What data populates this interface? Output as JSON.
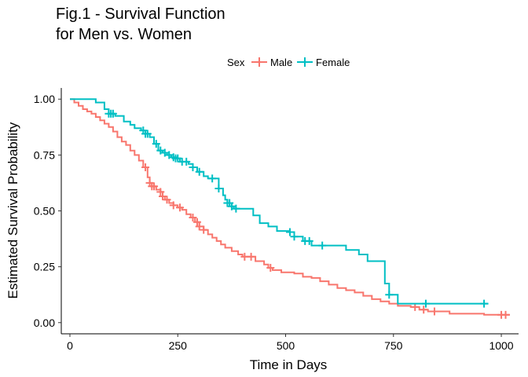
{
  "chart_data": {
    "type": "line",
    "step": true,
    "title_lines": [
      "Fig.1 - Survival Function",
      "for Men vs. Women"
    ],
    "xlabel": "Time in Days",
    "ylabel": "Estimated Survival Probability",
    "xlim": [
      -20,
      1040
    ],
    "ylim": [
      -0.05,
      1.05
    ],
    "x_ticks": [
      0,
      250,
      500,
      750,
      1000
    ],
    "x_tick_labels": [
      "0",
      "250",
      "500",
      "750",
      "1000"
    ],
    "y_ticks": [
      0,
      0.25,
      0.5,
      0.75,
      1.0
    ],
    "y_tick_labels": [
      "0.00",
      "0.25",
      "0.50",
      "0.75",
      "1.00"
    ],
    "grid": false,
    "legend": {
      "title": "Sex",
      "position": "top"
    },
    "series": [
      {
        "name": "Male",
        "color": "#F8766D",
        "points": [
          [
            0,
            1.0
          ],
          [
            10,
            0.985
          ],
          [
            20,
            0.97
          ],
          [
            30,
            0.955
          ],
          [
            40,
            0.945
          ],
          [
            50,
            0.935
          ],
          [
            60,
            0.92
          ],
          [
            70,
            0.905
          ],
          [
            80,
            0.89
          ],
          [
            90,
            0.875
          ],
          [
            100,
            0.855
          ],
          [
            110,
            0.83
          ],
          [
            120,
            0.81
          ],
          [
            130,
            0.795
          ],
          [
            140,
            0.77
          ],
          [
            150,
            0.75
          ],
          [
            160,
            0.725
          ],
          [
            170,
            0.695
          ],
          [
            180,
            0.65
          ],
          [
            185,
            0.625
          ],
          [
            190,
            0.61
          ],
          [
            200,
            0.595
          ],
          [
            210,
            0.585
          ],
          [
            215,
            0.565
          ],
          [
            220,
            0.55
          ],
          [
            230,
            0.535
          ],
          [
            240,
            0.525
          ],
          [
            250,
            0.515
          ],
          [
            260,
            0.505
          ],
          [
            270,
            0.485
          ],
          [
            280,
            0.47
          ],
          [
            290,
            0.45
          ],
          [
            300,
            0.43
          ],
          [
            310,
            0.415
          ],
          [
            320,
            0.395
          ],
          [
            330,
            0.38
          ],
          [
            340,
            0.365
          ],
          [
            350,
            0.35
          ],
          [
            360,
            0.335
          ],
          [
            375,
            0.32
          ],
          [
            390,
            0.305
          ],
          [
            400,
            0.295
          ],
          [
            420,
            0.295
          ],
          [
            430,
            0.275
          ],
          [
            450,
            0.26
          ],
          [
            460,
            0.245
          ],
          [
            470,
            0.235
          ],
          [
            490,
            0.225
          ],
          [
            520,
            0.22
          ],
          [
            540,
            0.205
          ],
          [
            560,
            0.2
          ],
          [
            580,
            0.185
          ],
          [
            600,
            0.17
          ],
          [
            620,
            0.155
          ],
          [
            640,
            0.145
          ],
          [
            660,
            0.135
          ],
          [
            680,
            0.12
          ],
          [
            700,
            0.105
          ],
          [
            720,
            0.095
          ],
          [
            740,
            0.085
          ],
          [
            760,
            0.075
          ],
          [
            790,
            0.07
          ],
          [
            810,
            0.058
          ],
          [
            830,
            0.05
          ],
          [
            880,
            0.04
          ],
          [
            960,
            0.035
          ],
          [
            1020,
            0.035
          ]
        ],
        "censor_x": [
          175,
          185,
          190,
          195,
          210,
          215,
          225,
          240,
          255,
          285,
          295,
          300,
          310,
          405,
          420,
          465,
          800,
          820,
          845,
          1000,
          1010
        ]
      },
      {
        "name": "Female",
        "color": "#00BFC4",
        "points": [
          [
            0,
            1.0
          ],
          [
            60,
            0.985
          ],
          [
            80,
            0.955
          ],
          [
            90,
            0.935
          ],
          [
            105,
            0.925
          ],
          [
            125,
            0.9
          ],
          [
            140,
            0.885
          ],
          [
            150,
            0.87
          ],
          [
            165,
            0.86
          ],
          [
            175,
            0.845
          ],
          [
            185,
            0.83
          ],
          [
            195,
            0.8
          ],
          [
            205,
            0.77
          ],
          [
            215,
            0.76
          ],
          [
            225,
            0.75
          ],
          [
            235,
            0.74
          ],
          [
            245,
            0.735
          ],
          [
            255,
            0.72
          ],
          [
            275,
            0.71
          ],
          [
            285,
            0.695
          ],
          [
            295,
            0.675
          ],
          [
            310,
            0.655
          ],
          [
            320,
            0.645
          ],
          [
            345,
            0.6
          ],
          [
            355,
            0.57
          ],
          [
            360,
            0.55
          ],
          [
            365,
            0.535
          ],
          [
            375,
            0.52
          ],
          [
            380,
            0.51
          ],
          [
            425,
            0.48
          ],
          [
            440,
            0.445
          ],
          [
            460,
            0.43
          ],
          [
            480,
            0.41
          ],
          [
            510,
            0.405
          ],
          [
            520,
            0.385
          ],
          [
            540,
            0.365
          ],
          [
            560,
            0.345
          ],
          [
            640,
            0.325
          ],
          [
            670,
            0.305
          ],
          [
            690,
            0.275
          ],
          [
            730,
            0.175
          ],
          [
            740,
            0.125
          ],
          [
            760,
            0.085
          ],
          [
            970,
            0.085
          ]
        ],
        "censor_x": [
          90,
          95,
          100,
          170,
          175,
          180,
          200,
          210,
          220,
          230,
          240,
          245,
          250,
          260,
          270,
          285,
          300,
          330,
          345,
          365,
          370,
          375,
          385,
          510,
          520,
          545,
          555,
          585,
          740,
          825,
          960
        ]
      }
    ]
  }
}
